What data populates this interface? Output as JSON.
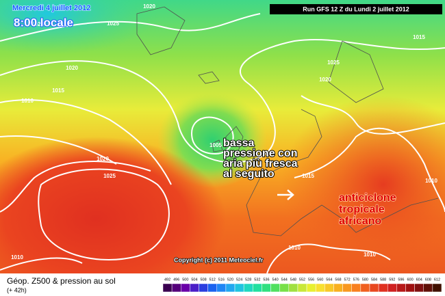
{
  "header": {
    "date": "Mercredi 4 juillet 2012",
    "time": "8:00 locale",
    "run": "Run GFS 12 Z du Lundi 2 juillet 2012"
  },
  "annotation": {
    "lines": [
      "bassa",
      "pressione con",
      "aria più fresca",
      "al seguito"
    ]
  },
  "anticyclone": {
    "lines": [
      "anticiclone",
      "tropicale",
      "africano"
    ]
  },
  "isobar_labels": [
    "1025",
    "1020",
    "1025",
    "1020",
    "1015",
    "1010",
    "1020",
    "1025",
    "1010",
    "1005",
    "1015",
    "1025",
    "1020",
    "1015",
    "1010",
    "1010",
    "1010"
  ],
  "copyright": "Copyright (c) 2011 Meteociel.fr",
  "footer": {
    "title": "Géop. Z500 & pression au sol",
    "lead": "(+ 42h)"
  },
  "scale": {
    "values": [
      492,
      496,
      500,
      504,
      508,
      512,
      516,
      520,
      524,
      528,
      532,
      536,
      540,
      544,
      548,
      552,
      556,
      560,
      564,
      568,
      572,
      576,
      580,
      584,
      588,
      592,
      596,
      600,
      604,
      608,
      612
    ],
    "colors": [
      "#3a0050",
      "#55007a",
      "#6a00a8",
      "#4b1fc8",
      "#2a3ee0",
      "#1a62f0",
      "#1f86f5",
      "#22a8f0",
      "#20c4e0",
      "#20d8c0",
      "#22e0a0",
      "#30e080",
      "#50e060",
      "#78e048",
      "#a0e040",
      "#c8e838",
      "#e8f030",
      "#f8e030",
      "#f8c828",
      "#f8b020",
      "#f89820",
      "#f88020",
      "#f06020",
      "#e84820",
      "#e03020",
      "#d02020",
      "#b81818",
      "#a01010",
      "#801010",
      "#601008",
      "#401000"
    ]
  }
}
